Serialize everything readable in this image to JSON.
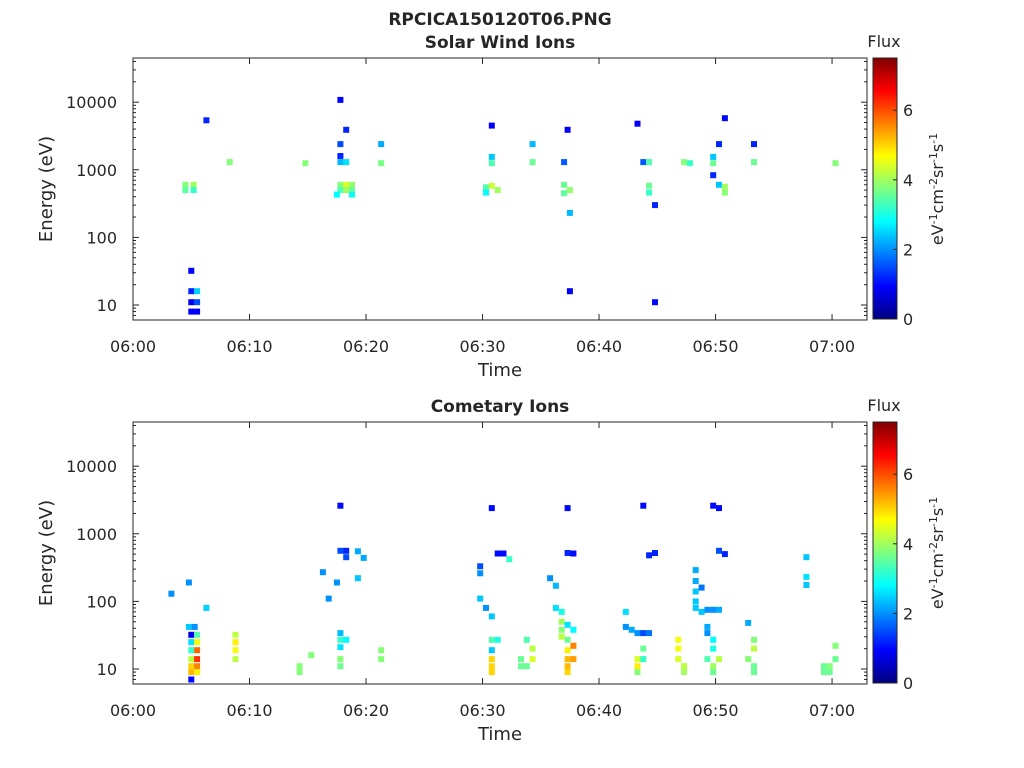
{
  "figure": {
    "title": "RPCICA150120T06.PNG"
  },
  "colormap": {
    "stops": [
      "#00007f",
      "#0000ff",
      "#007fff",
      "#00ffff",
      "#7fff7f",
      "#ffff00",
      "#ff7f00",
      "#ff0000",
      "#7f0000"
    ]
  },
  "chart_data": [
    {
      "type": "heatmap",
      "title": "Solar Wind Ions",
      "xlabel": "Time",
      "ylabel": "Energy (eV)",
      "yscale": "log",
      "xlim": [
        "06:00",
        "07:03"
      ],
      "ylim": [
        6,
        45000
      ],
      "x_ticks": [
        "06:00",
        "06:10",
        "06:20",
        "06:30",
        "06:40",
        "06:50",
        "07:00"
      ],
      "y_ticks": [
        10,
        100,
        1000,
        10000
      ],
      "y_tick_labels": [
        "10",
        "100",
        "1000",
        "10000"
      ],
      "colorbar": {
        "label": "Flux",
        "unit": "eV-1cm-2sr-1s-1",
        "range": [
          0,
          7.5
        ],
        "ticks": [
          "0",
          "2",
          "4",
          "6"
        ]
      },
      "cells": [
        {
          "t": "06:04.5",
          "e": 600,
          "v": 3.8
        },
        {
          "t": "06:04.5",
          "e": 500,
          "v": 3.5
        },
        {
          "t": "06:05.2",
          "e": 600,
          "v": 4.0
        },
        {
          "t": "06:05.2",
          "e": 500,
          "v": 3.2
        },
        {
          "t": "06:05.0",
          "e": 32,
          "v": 0.9
        },
        {
          "t": "06:05.0",
          "e": 16,
          "v": 1.2
        },
        {
          "t": "06:05.0",
          "e": 11,
          "v": 0.8
        },
        {
          "t": "06:05.0",
          "e": 8,
          "v": 0.9
        },
        {
          "t": "06:05.5",
          "e": 16,
          "v": 2.5
        },
        {
          "t": "06:05.5",
          "e": 11,
          "v": 1.5
        },
        {
          "t": "06:05.5",
          "e": 8,
          "v": 0.9
        },
        {
          "t": "06:06.3",
          "e": 5400,
          "v": 1.2
        },
        {
          "t": "06:08.3",
          "e": 1300,
          "v": 3.8
        },
        {
          "t": "06:14.8",
          "e": 1250,
          "v": 3.8
        },
        {
          "t": "06:17.8",
          "e": 10800,
          "v": 0.9
        },
        {
          "t": "06:17.8",
          "e": 2400,
          "v": 1.5
        },
        {
          "t": "06:17.8",
          "e": 1600,
          "v": 1.2
        },
        {
          "t": "06:17.8",
          "e": 1300,
          "v": 2.3
        },
        {
          "t": "06:18.3",
          "e": 1300,
          "v": 2.6
        },
        {
          "t": "06:18.3",
          "e": 3900,
          "v": 1.2
        },
        {
          "t": "06:17.8",
          "e": 600,
          "v": 3.8
        },
        {
          "t": "06:17.8",
          "e": 500,
          "v": 3.4
        },
        {
          "t": "06:18.3",
          "e": 600,
          "v": 4.4
        },
        {
          "t": "06:18.3",
          "e": 500,
          "v": 4.0
        },
        {
          "t": "06:18.8",
          "e": 600,
          "v": 3.9
        },
        {
          "t": "06:18.8",
          "e": 500,
          "v": 3.6
        },
        {
          "t": "06:17.5",
          "e": 430,
          "v": 2.8
        },
        {
          "t": "06:18.8",
          "e": 430,
          "v": 2.9
        },
        {
          "t": "06:21.3",
          "e": 2400,
          "v": 2.2
        },
        {
          "t": "06:21.3",
          "e": 1250,
          "v": 3.7
        },
        {
          "t": "06:30.8",
          "e": 4500,
          "v": 0.9
        },
        {
          "t": "06:30.8",
          "e": 1550,
          "v": 2.4
        },
        {
          "t": "06:30.8",
          "e": 1250,
          "v": 3.4
        },
        {
          "t": "06:30.3",
          "e": 550,
          "v": 3.4
        },
        {
          "t": "06:30.8",
          "e": 580,
          "v": 4.3
        },
        {
          "t": "06:31.3",
          "e": 500,
          "v": 4.0
        },
        {
          "t": "06:30.3",
          "e": 460,
          "v": 2.8
        },
        {
          "t": "06:34.3",
          "e": 2400,
          "v": 2.3
        },
        {
          "t": "06:34.3",
          "e": 1300,
          "v": 3.6
        },
        {
          "t": "06:37.3",
          "e": 3900,
          "v": 0.9
        },
        {
          "t": "06:37.0",
          "e": 1300,
          "v": 1.6
        },
        {
          "t": "06:37.0",
          "e": 600,
          "v": 3.6
        },
        {
          "t": "06:37.5",
          "e": 500,
          "v": 3.9
        },
        {
          "t": "06:37.0",
          "e": 450,
          "v": 3.5
        },
        {
          "t": "06:37.5",
          "e": 230,
          "v": 2.3
        },
        {
          "t": "06:37.5",
          "e": 16,
          "v": 0.9
        },
        {
          "t": "06:43.3",
          "e": 4800,
          "v": 0.9
        },
        {
          "t": "06:43.8",
          "e": 1300,
          "v": 1.6
        },
        {
          "t": "06:44.3",
          "e": 1300,
          "v": 3.4
        },
        {
          "t": "06:44.3",
          "e": 580,
          "v": 3.6
        },
        {
          "t": "06:44.3",
          "e": 460,
          "v": 3.2
        },
        {
          "t": "06:44.8",
          "e": 300,
          "v": 1.2
        },
        {
          "t": "06:44.8",
          "e": 11,
          "v": 1.0
        },
        {
          "t": "06:47.3",
          "e": 1300,
          "v": 3.8
        },
        {
          "t": "06:47.8",
          "e": 1250,
          "v": 3.2
        },
        {
          "t": "06:49.8",
          "e": 1550,
          "v": 2.4
        },
        {
          "t": "06:49.8",
          "e": 1250,
          "v": 3.6
        },
        {
          "t": "06:50.3",
          "e": 2400,
          "v": 1.2
        },
        {
          "t": "06:49.8",
          "e": 830,
          "v": 1.2
        },
        {
          "t": "06:50.3",
          "e": 600,
          "v": 2.4
        },
        {
          "t": "06:50.8",
          "e": 560,
          "v": 4.0
        },
        {
          "t": "06:50.8",
          "e": 460,
          "v": 3.8
        },
        {
          "t": "06:50.8",
          "e": 5800,
          "v": 1.0
        },
        {
          "t": "06:53.3",
          "e": 2400,
          "v": 1.2
        },
        {
          "t": "06:53.3",
          "e": 1300,
          "v": 3.6
        },
        {
          "t": "07:00.3",
          "e": 1250,
          "v": 3.8
        }
      ]
    },
    {
      "type": "heatmap",
      "title": "Cometary Ions",
      "xlabel": "Time",
      "ylabel": "Energy (eV)",
      "yscale": "log",
      "xlim": [
        "06:00",
        "07:03"
      ],
      "ylim": [
        6,
        45000
      ],
      "x_ticks": [
        "06:00",
        "06:10",
        "06:20",
        "06:30",
        "06:40",
        "06:50",
        "07:00"
      ],
      "y_ticks": [
        10,
        100,
        1000,
        10000
      ],
      "y_tick_labels": [
        "10",
        "100",
        "1000",
        "10000"
      ],
      "colorbar": {
        "label": "Flux",
        "unit": "eV-1cm-2sr-1s-1",
        "range": [
          0,
          7.5
        ],
        "ticks": [
          "0",
          "2",
          "4",
          "6"
        ]
      },
      "cells": [
        {
          "t": "06:03.3",
          "e": 130,
          "v": 2.0
        },
        {
          "t": "06:04.8",
          "e": 190,
          "v": 2.0
        },
        {
          "t": "06:04.8",
          "e": 42,
          "v": 2.4
        },
        {
          "t": "06:05.3",
          "e": 42,
          "v": 2.0
        },
        {
          "t": "06:06.3",
          "e": 80,
          "v": 2.5
        },
        {
          "t": "06:05.0",
          "e": 32,
          "v": 0.8
        },
        {
          "t": "06:05.0",
          "e": 25,
          "v": 2.6
        },
        {
          "t": "06:05.0",
          "e": 19,
          "v": 3.2
        },
        {
          "t": "06:05.0",
          "e": 14,
          "v": 4.2
        },
        {
          "t": "06:05.0",
          "e": 11,
          "v": 5.0
        },
        {
          "t": "06:05.0",
          "e": 9,
          "v": 5.2
        },
        {
          "t": "06:05.0",
          "e": 7,
          "v": 1.0
        },
        {
          "t": "06:05.5",
          "e": 32,
          "v": 3.4
        },
        {
          "t": "06:05.5",
          "e": 25,
          "v": 4.6
        },
        {
          "t": "06:05.5",
          "e": 19,
          "v": 5.8
        },
        {
          "t": "06:05.5",
          "e": 14,
          "v": 6.2
        },
        {
          "t": "06:05.5",
          "e": 11,
          "v": 5.6
        },
        {
          "t": "06:05.5",
          "e": 9,
          "v": 4.8
        },
        {
          "t": "06:08.8",
          "e": 32,
          "v": 4.2
        },
        {
          "t": "06:08.8",
          "e": 25,
          "v": 4.8
        },
        {
          "t": "06:08.8",
          "e": 19,
          "v": 4.6
        },
        {
          "t": "06:08.8",
          "e": 14,
          "v": 4.2
        },
        {
          "t": "06:14.3",
          "e": 11,
          "v": 3.8
        },
        {
          "t": "06:14.3",
          "e": 9,
          "v": 3.8
        },
        {
          "t": "06:15.3",
          "e": 16,
          "v": 3.8
        },
        {
          "t": "06:16.3",
          "e": 270,
          "v": 2.0
        },
        {
          "t": "06:16.8",
          "e": 110,
          "v": 2.0
        },
        {
          "t": "06:17.8",
          "e": 2600,
          "v": 1.0
        },
        {
          "t": "06:17.8",
          "e": 560,
          "v": 1.5
        },
        {
          "t": "06:18.3",
          "e": 560,
          "v": 1.2
        },
        {
          "t": "06:18.3",
          "e": 450,
          "v": 1.5
        },
        {
          "t": "06:19.3",
          "e": 550,
          "v": 2.2
        },
        {
          "t": "06:19.8",
          "e": 440,
          "v": 2.2
        },
        {
          "t": "06:17.5",
          "e": 190,
          "v": 2.0
        },
        {
          "t": "06:19.3",
          "e": 220,
          "v": 2.4
        },
        {
          "t": "06:17.8",
          "e": 34,
          "v": 2.3
        },
        {
          "t": "06:17.8",
          "e": 27,
          "v": 3.2
        },
        {
          "t": "06:17.8",
          "e": 21,
          "v": 2.6
        },
        {
          "t": "06:17.8",
          "e": 14,
          "v": 3.8
        },
        {
          "t": "06:17.8",
          "e": 11,
          "v": 3.6
        },
        {
          "t": "06:18.3",
          "e": 27,
          "v": 2.8
        },
        {
          "t": "06:21.3",
          "e": 19,
          "v": 3.8
        },
        {
          "t": "06:21.3",
          "e": 14,
          "v": 3.8
        },
        {
          "t": "06:30.8",
          "e": 2400,
          "v": 1.0
        },
        {
          "t": "06:29.8",
          "e": 330,
          "v": 1.5
        },
        {
          "t": "06:29.8",
          "e": 260,
          "v": 2.0
        },
        {
          "t": "06:29.8",
          "e": 110,
          "v": 2.4
        },
        {
          "t": "06:30.3",
          "e": 80,
          "v": 2.0
        },
        {
          "t": "06:30.8",
          "e": 60,
          "v": 2.4
        },
        {
          "t": "06:31.3",
          "e": 510,
          "v": 1.0
        },
        {
          "t": "06:31.8",
          "e": 510,
          "v": 1.0
        },
        {
          "t": "06:32.3",
          "e": 420,
          "v": 3.2
        },
        {
          "t": "06:30.8",
          "e": 27,
          "v": 3.4
        },
        {
          "t": "06:31.3",
          "e": 27,
          "v": 3.0
        },
        {
          "t": "06:30.8",
          "e": 19,
          "v": 2.4
        },
        {
          "t": "06:30.8",
          "e": 14,
          "v": 5.0
        },
        {
          "t": "06:30.8",
          "e": 11,
          "v": 5.0
        },
        {
          "t": "06:30.8",
          "e": 9,
          "v": 5.0
        },
        {
          "t": "06:33.3",
          "e": 14,
          "v": 3.6
        },
        {
          "t": "06:33.3",
          "e": 11,
          "v": 3.6
        },
        {
          "t": "06:33.8",
          "e": 11,
          "v": 3.6
        },
        {
          "t": "06:34.3",
          "e": 20,
          "v": 4.2
        },
        {
          "t": "06:34.3",
          "e": 14,
          "v": 4.4
        },
        {
          "t": "06:33.8",
          "e": 27,
          "v": 3.4
        },
        {
          "t": "06:35.8",
          "e": 220,
          "v": 2.0
        },
        {
          "t": "06:36.3",
          "e": 170,
          "v": 2.3
        },
        {
          "t": "06:36.3",
          "e": 80,
          "v": 2.6
        },
        {
          "t": "06:36.8",
          "e": 70,
          "v": 3.0
        },
        {
          "t": "06:37.3",
          "e": 2400,
          "v": 1.0
        },
        {
          "t": "06:37.3",
          "e": 520,
          "v": 1.2
        },
        {
          "t": "06:37.8",
          "e": 510,
          "v": 1.0
        },
        {
          "t": "06:36.8",
          "e": 50,
          "v": 4.0
        },
        {
          "t": "06:36.8",
          "e": 38,
          "v": 3.8
        },
        {
          "t": "06:36.8",
          "e": 30,
          "v": 4.2
        },
        {
          "t": "06:37.3",
          "e": 45,
          "v": 2.6
        },
        {
          "t": "06:37.8",
          "e": 38,
          "v": 2.8
        },
        {
          "t": "06:37.3",
          "e": 27,
          "v": 3.6
        },
        {
          "t": "06:37.3",
          "e": 19,
          "v": 4.8
        },
        {
          "t": "06:37.3",
          "e": 14,
          "v": 5.2
        },
        {
          "t": "06:37.3",
          "e": 11,
          "v": 5.2
        },
        {
          "t": "06:37.3",
          "e": 9,
          "v": 5.0
        },
        {
          "t": "06:37.8",
          "e": 22,
          "v": 5.6
        },
        {
          "t": "06:37.8",
          "e": 14,
          "v": 5.4
        },
        {
          "t": "06:42.3",
          "e": 70,
          "v": 2.6
        },
        {
          "t": "06:42.3",
          "e": 42,
          "v": 2.0
        },
        {
          "t": "06:42.8",
          "e": 38,
          "v": 2.2
        },
        {
          "t": "06:43.3",
          "e": 34,
          "v": 2.0
        },
        {
          "t": "06:43.8",
          "e": 34,
          "v": 1.5
        },
        {
          "t": "06:44.3",
          "e": 34,
          "v": 1.8
        },
        {
          "t": "06:43.8",
          "e": 2600,
          "v": 1.0
        },
        {
          "t": "06:44.3",
          "e": 480,
          "v": 1.2
        },
        {
          "t": "06:44.8",
          "e": 520,
          "v": 1.2
        },
        {
          "t": "06:43.3",
          "e": 14,
          "v": 4.4
        },
        {
          "t": "06:43.3",
          "e": 11,
          "v": 4.8
        },
        {
          "t": "06:43.3",
          "e": 9,
          "v": 3.8
        },
        {
          "t": "06:43.8",
          "e": 20,
          "v": 3.6
        },
        {
          "t": "06:43.8",
          "e": 14,
          "v": 3.2
        },
        {
          "t": "06:46.8",
          "e": 27,
          "v": 4.6
        },
        {
          "t": "06:46.8",
          "e": 20,
          "v": 4.6
        },
        {
          "t": "06:46.8",
          "e": 14,
          "v": 4.4
        },
        {
          "t": "06:47.3",
          "e": 11,
          "v": 4.2
        },
        {
          "t": "06:47.3",
          "e": 9,
          "v": 4.0
        },
        {
          "t": "06:48.3",
          "e": 290,
          "v": 2.2
        },
        {
          "t": "06:48.3",
          "e": 200,
          "v": 2.2
        },
        {
          "t": "06:48.3",
          "e": 140,
          "v": 2.4
        },
        {
          "t": "06:48.3",
          "e": 100,
          "v": 2.4
        },
        {
          "t": "06:48.3",
          "e": 80,
          "v": 2.4
        },
        {
          "t": "06:48.8",
          "e": 160,
          "v": 1.8
        },
        {
          "t": "06:48.8",
          "e": 70,
          "v": 2.4
        },
        {
          "t": "06:49.3",
          "e": 75,
          "v": 2.0
        },
        {
          "t": "06:49.8",
          "e": 75,
          "v": 2.0
        },
        {
          "t": "06:50.3",
          "e": 75,
          "v": 2.2
        },
        {
          "t": "06:49.8",
          "e": 2600,
          "v": 1.0
        },
        {
          "t": "06:50.3",
          "e": 2400,
          "v": 1.0
        },
        {
          "t": "06:50.3",
          "e": 560,
          "v": 1.5
        },
        {
          "t": "06:50.8",
          "e": 500,
          "v": 1.2
        },
        {
          "t": "06:49.3",
          "e": 42,
          "v": 2.2
        },
        {
          "t": "06:49.3",
          "e": 34,
          "v": 2.0
        },
        {
          "t": "06:49.8",
          "e": 27,
          "v": 2.8
        },
        {
          "t": "06:49.8",
          "e": 20,
          "v": 3.0
        },
        {
          "t": "06:49.3",
          "e": 14,
          "v": 3.4
        },
        {
          "t": "06:49.8",
          "e": 11,
          "v": 4.0
        },
        {
          "t": "06:49.8",
          "e": 9,
          "v": 3.6
        },
        {
          "t": "06:50.3",
          "e": 14,
          "v": 4.2
        },
        {
          "t": "06:52.8",
          "e": 48,
          "v": 2.2
        },
        {
          "t": "06:53.3",
          "e": 27,
          "v": 3.8
        },
        {
          "t": "06:53.3",
          "e": 20,
          "v": 4.2
        },
        {
          "t": "06:52.8",
          "e": 14,
          "v": 3.8
        },
        {
          "t": "06:53.3",
          "e": 11,
          "v": 3.6
        },
        {
          "t": "06:53.3",
          "e": 9,
          "v": 3.6
        },
        {
          "t": "06:57.8",
          "e": 450,
          "v": 2.4
        },
        {
          "t": "06:57.8",
          "e": 230,
          "v": 2.6
        },
        {
          "t": "06:57.8",
          "e": 175,
          "v": 2.4
        },
        {
          "t": "06:59.3",
          "e": 11,
          "v": 3.6
        },
        {
          "t": "06:59.3",
          "e": 9,
          "v": 3.6
        },
        {
          "t": "06:59.8",
          "e": 11,
          "v": 3.8
        },
        {
          "t": "06:59.8",
          "e": 9,
          "v": 3.6
        },
        {
          "t": "07:00.3",
          "e": 22,
          "v": 3.8
        },
        {
          "t": "07:00.3",
          "e": 14,
          "v": 3.6
        }
      ]
    }
  ]
}
